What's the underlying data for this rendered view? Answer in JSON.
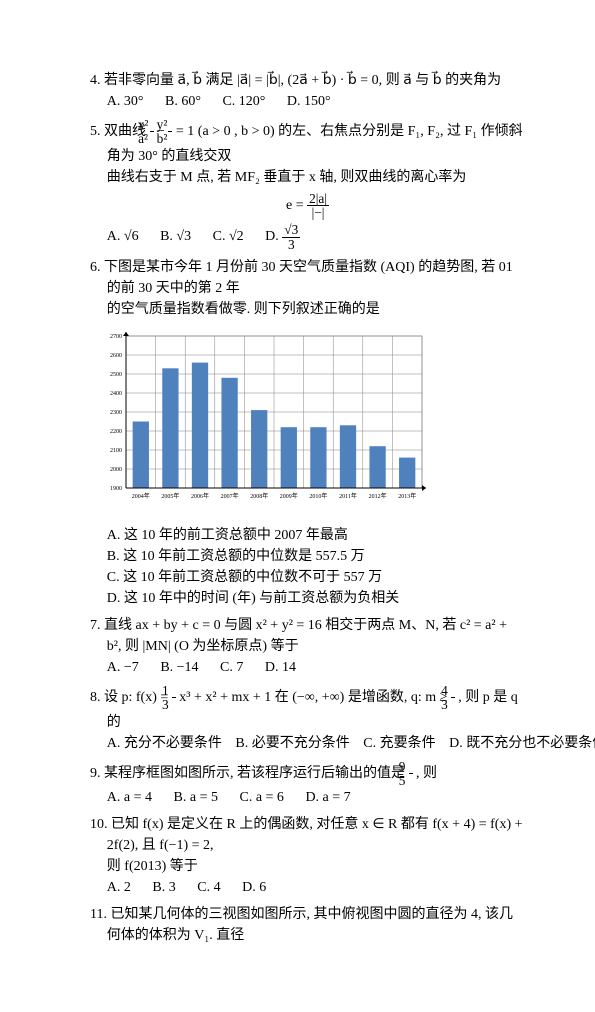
{
  "problems": {
    "p4": {
      "number": "4.",
      "text_before": "若非零向量",
      "vec1": "a⃗",
      "comma": ", ",
      "vec2": "b⃗",
      "text_after": "满足",
      "cond": "|a⃗| = |b⃗|, (2a⃗ + b⃗) · b⃗ = 0,",
      "then": "则",
      "ask": "a⃗ 与 b⃗ 的夹角为",
      "choices": {
        "a": "A. 30°",
        "b": "B. 60°",
        "c": "C. 120°",
        "d": "D. 150°"
      }
    },
    "p5": {
      "number": "5.",
      "text_before": "双曲线",
      "eq_lhs_num": "x²",
      "eq_lhs_den": "a²",
      "eq_minus": " − ",
      "eq_rhs_num": "y²",
      "eq_rhs_den": "b²",
      "eq_eq": " = 1 (a > 0 , b > 0)",
      "text_mid": "的左、右焦点分别是 F₁, F₂, 过 F₁ 作倾斜角为 30° 的直线交双",
      "text_line2": "曲线右支于 M 点, 若 MF₂ 垂直于 x 轴, 则双曲线的离心率为",
      "formula_label": "e =",
      "formula_num": "2|a|",
      "formula_den": "|−|",
      "choices": {
        "a": "A. √6",
        "b": "B. √3",
        "c": "C. √2",
        "d_prefix": "D. ",
        "d_num": "√3",
        "d_den": "3"
      }
    },
    "p6": {
      "number": "6.",
      "text": "下图是某市今年 1 月份前 30 天空气质量指数 (AQI) 的趋势图, 若 01 的前 30 天中的第 2 年",
      "text2": "的空气质量指数看做零. 则下列叙述正确的是",
      "chart": {
        "type": "bar",
        "categories": [
          "2004年",
          "2005年",
          "2006年",
          "2007年",
          "2008年",
          "2009年",
          "2010年",
          "2011年",
          "2012年",
          "2013年"
        ],
        "values": [
          2250,
          2530,
          2560,
          2480,
          2310,
          2220,
          2220,
          2230,
          2120,
          2060
        ],
        "bar_color": "#4f81bd",
        "ylim": [
          1900,
          2700
        ],
        "ytick_step": 100,
        "yticks": [
          1900,
          2000,
          2100,
          2200,
          2300,
          2400,
          2500,
          2600,
          2700
        ],
        "grid_color": "#808080",
        "border_color": "#808080",
        "background_color": "#ffffff",
        "axis_label_fontsize": 6,
        "bar_width": 0.55
      },
      "choices": {
        "a": "A. 这 10 年的前工资总额中 2007 年最高",
        "b": "B. 这 10 年前工资总额的中位数是 557.5 万",
        "c": "C. 这 10 年前工资总额的中位数不可于 557 万",
        "d": "D. 这 10 年中的时间 (年) 与前工资总额为负相关"
      }
    },
    "p7": {
      "number": "7.",
      "text": "直线 ax + by + c = 0 与圆 x² + y² = 16 相交于两点 M、N, 若 c² = a² + b², 则 |MN| (O 为坐标原点) 等于",
      "choices": {
        "a": "A. −7",
        "b": "B. −14",
        "c": "C. 7",
        "d": "D. 14"
      }
    },
    "p8": {
      "number": "8.",
      "text_a": "设 p: f(x) =",
      "frac_num": "1",
      "frac_den": "3",
      "text_b": "x³ + x² + mx + 1 在 (−∞, +∞) 是增函数, q: m ≥",
      "frac2_num": "4",
      "frac2_den": "3",
      "text_c": ", 则 p 是 q 的",
      "choices": {
        "a": "A. 充分不必要条件",
        "b": "B. 必要不充分条件",
        "c": "C. 充要条件",
        "d": "D. 既不充分也不必要条件"
      }
    },
    "p9": {
      "number": "9.",
      "text": "某程序框图如图所示, 若该程序运行后输出的值是",
      "frac_num": "9",
      "frac_den": "5",
      "text2": ", 则",
      "choices": {
        "a": "A. a = 4",
        "b": "B. a = 5",
        "c": "C. a = 6",
        "d": "D. a = 7"
      }
    },
    "p10": {
      "number": "10.",
      "text_a": "已知 f(x) 是定义在 R 上的偶函数, 对任意 x ∈ R 都有 f(x + 4) = f(x) + 2f(2), 且 f(−1) = 2,",
      "text_b": "则 f(2013) 等于",
      "choices": {
        "a": "A. 2",
        "b": "B. 3",
        "c": "C. 4",
        "d": "D. 6"
      }
    },
    "p11": {
      "number": "11.",
      "text": "已知某几何体的三视图如图所示, 其中俯视图中圆的直径为 4, 该几何体的体积为 V₁. 直径"
    }
  }
}
